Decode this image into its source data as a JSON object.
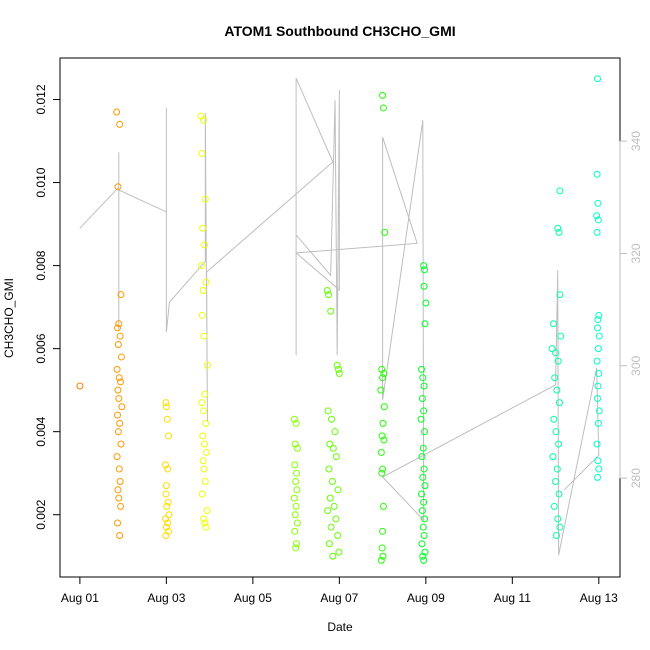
{
  "chart_data": {
    "type": "scatter",
    "title": "ATOM1 Southbound CH3CHO_GMI",
    "xlabel": "Date",
    "ylabel": "CH3CHO_GMI",
    "xlim": [
      -0.46,
      12.49
    ],
    "ylim": [
      0.0005,
      0.013
    ],
    "y2lim": [
      262.4,
      354.8
    ],
    "xticks": [
      {
        "value": 0,
        "label": "Aug 01"
      },
      {
        "value": 2,
        "label": "Aug 03"
      },
      {
        "value": 4,
        "label": "Aug 05"
      },
      {
        "value": 6,
        "label": "Aug 07"
      },
      {
        "value": 8,
        "label": "Aug 09"
      },
      {
        "value": 10,
        "label": "Aug 11"
      },
      {
        "value": 12,
        "label": "Aug 13"
      }
    ],
    "yticks": [
      {
        "value": 0.002,
        "label": "0.002"
      },
      {
        "value": 0.004,
        "label": "0.004"
      },
      {
        "value": 0.006,
        "label": "0.006"
      },
      {
        "value": 0.008,
        "label": "0.008"
      },
      {
        "value": 0.01,
        "label": "0.010"
      },
      {
        "value": 0.012,
        "label": "0.012"
      }
    ],
    "y2ticks": [
      280,
      300,
      320,
      340
    ],
    "y2_color": "#bebebe",
    "series": [
      {
        "type": "line",
        "axis": "y2",
        "color": "#bebebe",
        "x": [
          0,
          0.9,
          0.9,
          0.9,
          0.9,
          2.0,
          2.0,
          2.0,
          2.07,
          2.9,
          2.9,
          2.95,
          2.93,
          5.85,
          5.0,
          5.0,
          5.0,
          5.8,
          5.9,
          5.95,
          6.0,
          6.0,
          5.0,
          7.8,
          7.0,
          7.0,
          7.93,
          7.95,
          7.0,
          11.0,
          11.05,
          11.07,
          11.95,
          12.0,
          11.2
        ],
        "values": [
          324.5,
          331.8,
          338.0,
          306.3,
          331.3,
          327.4,
          345.9,
          306.0,
          311.3,
          318.6,
          345.0,
          290.0,
          316.7,
          336.3,
          351.2,
          301.9,
          323.3,
          316.1,
          347.3,
          301.9,
          349.1,
          313.5,
          320.1,
          321.8,
          340.7,
          293.9,
          343.7,
          272.5,
          280.2,
          296.6,
          317.0,
          266.3,
          299.6,
          284.1,
          277.9
        ]
      },
      {
        "color": "#ff8000",
        "x": [
          0
        ],
        "values": [
          0.0051
        ]
      },
      {
        "color": "#ff9900",
        "x": [
          0.85,
          0.92,
          0.88,
          0.95,
          0.9,
          0.87,
          0.93,
          0.89,
          0.96,
          0.86,
          0.91,
          0.94,
          0.88,
          0.9,
          0.97,
          0.87,
          0.92,
          0.89,
          0.95,
          0.86,
          0.91,
          0.93,
          0.88,
          0.9,
          0.94,
          0.87,
          0.92
        ],
        "values": [
          0.0117,
          0.0114,
          0.0099,
          0.0073,
          0.0066,
          0.0065,
          0.0063,
          0.0061,
          0.0058,
          0.0055,
          0.0053,
          0.0052,
          0.005,
          0.0048,
          0.0046,
          0.0044,
          0.0042,
          0.004,
          0.0037,
          0.0034,
          0.0031,
          0.0028,
          0.0026,
          0.0024,
          0.0022,
          0.0018,
          0.0015
        ]
      },
      {
        "color": "#ffdd00",
        "x": [
          1.99,
          2.0,
          2.02,
          2.05,
          1.98,
          2.03,
          2.0,
          1.99,
          2.04,
          2.01,
          2.06,
          1.98,
          2.03,
          2.0,
          2.05,
          1.99
        ],
        "values": [
          0.0047,
          0.0046,
          0.0043,
          0.0039,
          0.0032,
          0.0031,
          0.0027,
          0.0025,
          0.0023,
          0.0022,
          0.002,
          0.0019,
          0.0018,
          0.0017,
          0.0016,
          0.0015
        ]
      },
      {
        "color": "#eeff00",
        "x": [
          2.8,
          2.86,
          2.82,
          2.9,
          2.84,
          2.88,
          2.81,
          2.92,
          2.85,
          2.83,
          2.87,
          2.95,
          2.89,
          2.82,
          2.86,
          2.91,
          2.84,
          2.88,
          2.93,
          2.85,
          2.87,
          2.9,
          2.83,
          2.94,
          2.86,
          2.89,
          2.92
        ],
        "values": [
          0.0116,
          0.0115,
          0.0107,
          0.0096,
          0.0089,
          0.0085,
          0.008,
          0.0076,
          0.0074,
          0.0068,
          0.0063,
          0.0056,
          0.0049,
          0.0047,
          0.0045,
          0.0042,
          0.0039,
          0.0037,
          0.0035,
          0.0033,
          0.0031,
          0.0028,
          0.0025,
          0.0021,
          0.0019,
          0.0018,
          0.0017
        ]
      },
      {
        "color": "#88ff00",
        "x": [
          4.96,
          5.0,
          4.98,
          5.03,
          4.97,
          5.01,
          4.99,
          5.02,
          4.96,
          5.0,
          4.98,
          5.03,
          4.97,
          5.01,
          4.99
        ],
        "values": [
          0.0043,
          0.0042,
          0.0037,
          0.0036,
          0.0032,
          0.003,
          0.0028,
          0.0026,
          0.0024,
          0.0022,
          0.002,
          0.0018,
          0.0016,
          0.0013,
          0.0012
        ]
      },
      {
        "color": "#66ff00",
        "x": [
          5.72,
          5.75,
          5.8,
          5.95,
          5.98,
          6.0,
          5.74,
          5.82,
          5.9,
          5.78,
          5.86,
          5.93,
          5.76,
          5.84,
          5.97,
          5.79,
          5.88,
          5.73,
          5.92,
          5.81,
          5.96,
          5.77,
          5.99,
          5.85
        ],
        "values": [
          0.0074,
          0.0073,
          0.0069,
          0.0056,
          0.0055,
          0.0054,
          0.0045,
          0.0043,
          0.004,
          0.0037,
          0.0036,
          0.0034,
          0.0031,
          0.0028,
          0.0026,
          0.0024,
          0.0022,
          0.0021,
          0.0019,
          0.0017,
          0.0015,
          0.0013,
          0.0011,
          0.001
        ]
      },
      {
        "color": "#22ff00",
        "x": [
          7.0,
          7.02,
          7.05,
          6.98,
          7.03,
          7.0,
          6.96,
          7.04,
          7.01,
          6.99,
          7.03,
          6.97,
          7.0,
          6.98,
          7.02,
          7.0,
          6.99,
          7.01,
          6.97
        ],
        "values": [
          0.0121,
          0.0118,
          0.0088,
          0.0055,
          0.0054,
          0.0053,
          0.005,
          0.0046,
          0.0042,
          0.0039,
          0.0038,
          0.0035,
          0.0031,
          0.003,
          0.0022,
          0.0016,
          0.0012,
          0.001,
          0.0009
        ]
      },
      {
        "color": "#00ff22",
        "x": [
          7.95,
          7.97,
          7.96,
          8.0,
          7.98,
          7.9,
          7.93,
          7.96,
          7.92,
          7.95,
          7.89,
          7.97,
          7.94,
          7.91,
          7.96,
          7.93,
          7.98,
          7.9,
          7.95,
          7.92,
          7.97,
          7.94,
          7.96,
          7.91,
          7.98,
          7.93,
          7.95
        ],
        "values": [
          0.008,
          0.0079,
          0.0075,
          0.0071,
          0.0066,
          0.0055,
          0.0053,
          0.0051,
          0.0048,
          0.0045,
          0.0043,
          0.004,
          0.0036,
          0.0034,
          0.0031,
          0.0029,
          0.0027,
          0.0025,
          0.0023,
          0.0021,
          0.0019,
          0.0017,
          0.0015,
          0.0013,
          0.0011,
          0.001,
          0.0009
        ]
      },
      {
        "color": "#00ffaa",
        "x": [
          11.1,
          11.05,
          11.08,
          11.1,
          10.95,
          11.12,
          10.92,
          11.0,
          11.06,
          10.98,
          11.03,
          11.09,
          10.96,
          11.01,
          11.07,
          10.94,
          11.04,
          11.0,
          11.08,
          10.97,
          11.05,
          11.1,
          11.02
        ],
        "values": [
          0.0098,
          0.0089,
          0.0088,
          0.0073,
          0.0066,
          0.0063,
          0.006,
          0.0059,
          0.0057,
          0.0053,
          0.005,
          0.0047,
          0.0043,
          0.004,
          0.0037,
          0.0034,
          0.0031,
          0.0028,
          0.0025,
          0.0022,
          0.0019,
          0.0017,
          0.0015
        ]
      },
      {
        "color": "#00ffc8",
        "x": [
          11.97,
          11.96,
          11.98,
          11.95,
          11.99,
          11.96,
          12.0,
          11.98,
          11.97,
          12.01,
          11.99,
          11.96,
          12.0,
          11.98,
          11.97,
          12.01,
          11.99,
          11.96,
          11.98,
          12.0,
          11.97
        ],
        "values": [
          0.0125,
          0.0102,
          0.0095,
          0.0092,
          0.0091,
          0.0088,
          0.0068,
          0.0067,
          0.0065,
          0.0063,
          0.006,
          0.0057,
          0.0054,
          0.0051,
          0.0048,
          0.0045,
          0.0042,
          0.0037,
          0.0033,
          0.0031,
          0.0029
        ]
      }
    ]
  }
}
